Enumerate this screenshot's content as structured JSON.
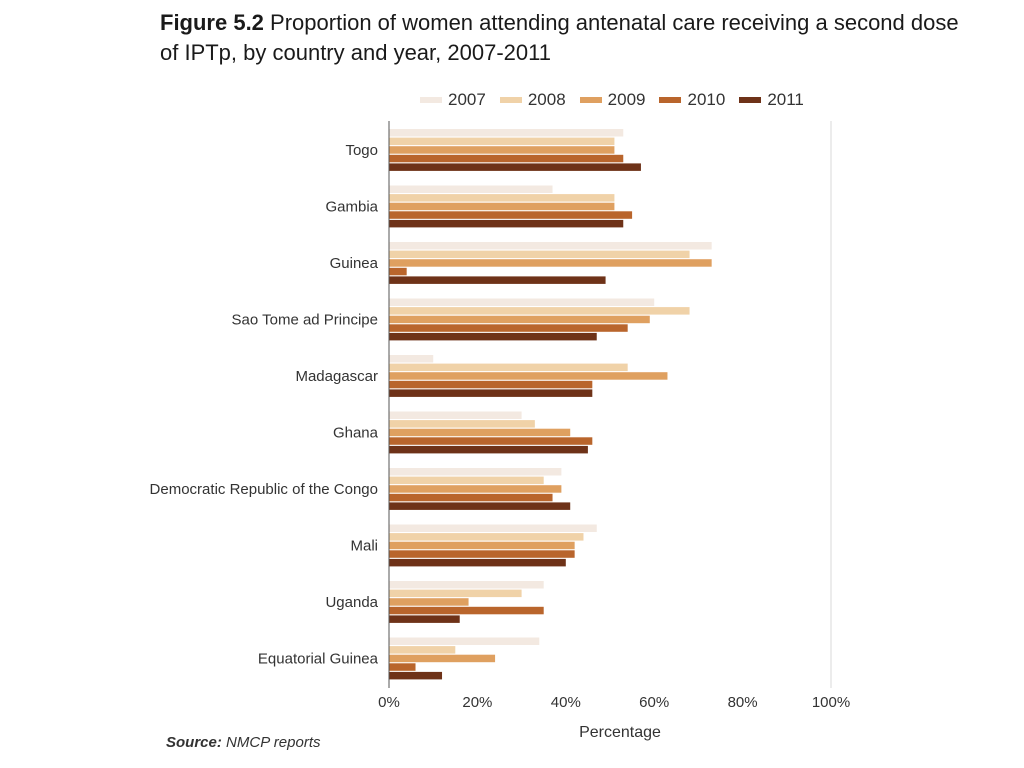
{
  "title": {
    "figure_label": "Figure 5.2",
    "text": "Proportion of women attending antenatal care receiving a second dose of IPTp, by country and year, 2007-2011"
  },
  "source": {
    "label": "Source:",
    "text": "NMCP reports"
  },
  "chart_data": {
    "type": "bar",
    "orientation": "horizontal",
    "title": "Proportion of women attending antenatal care receiving a second dose of IPTp, by country and year, 2007-2011",
    "xlabel": "Percentage",
    "ylabel": "",
    "xlim": [
      0,
      100
    ],
    "x_ticks": [
      "0%",
      "20%",
      "40%",
      "60%",
      "80%",
      "100%"
    ],
    "x_tick_values": [
      0,
      20,
      40,
      60,
      80,
      100
    ],
    "grid": "vertical gridline at 100% only",
    "legend_position": "top",
    "categories": [
      "Togo",
      "Gambia",
      "Guinea",
      "Sao Tome ad Principe",
      "Madagascar",
      "Ghana",
      "Democratic Republic of the Congo",
      "Mali",
      "Uganda",
      "Equatorial Guinea"
    ],
    "series": [
      {
        "name": "2007",
        "color": "#f3e9e1",
        "values": [
          53,
          37,
          73,
          60,
          10,
          30,
          39,
          47,
          35,
          34
        ]
      },
      {
        "name": "2008",
        "color": "#f0d2a8",
        "values": [
          51,
          51,
          68,
          68,
          54,
          33,
          35,
          44,
          30,
          15
        ]
      },
      {
        "name": "2009",
        "color": "#dfa060",
        "values": [
          51,
          51,
          73,
          59,
          63,
          41,
          39,
          42,
          18,
          24
        ]
      },
      {
        "name": "2010",
        "color": "#b9652c",
        "values": [
          53,
          55,
          4,
          54,
          46,
          46,
          37,
          42,
          35,
          6
        ]
      },
      {
        "name": "2011",
        "color": "#6e3218",
        "values": [
          57,
          53,
          49,
          47,
          46,
          45,
          41,
          40,
          16,
          12
        ]
      }
    ]
  }
}
